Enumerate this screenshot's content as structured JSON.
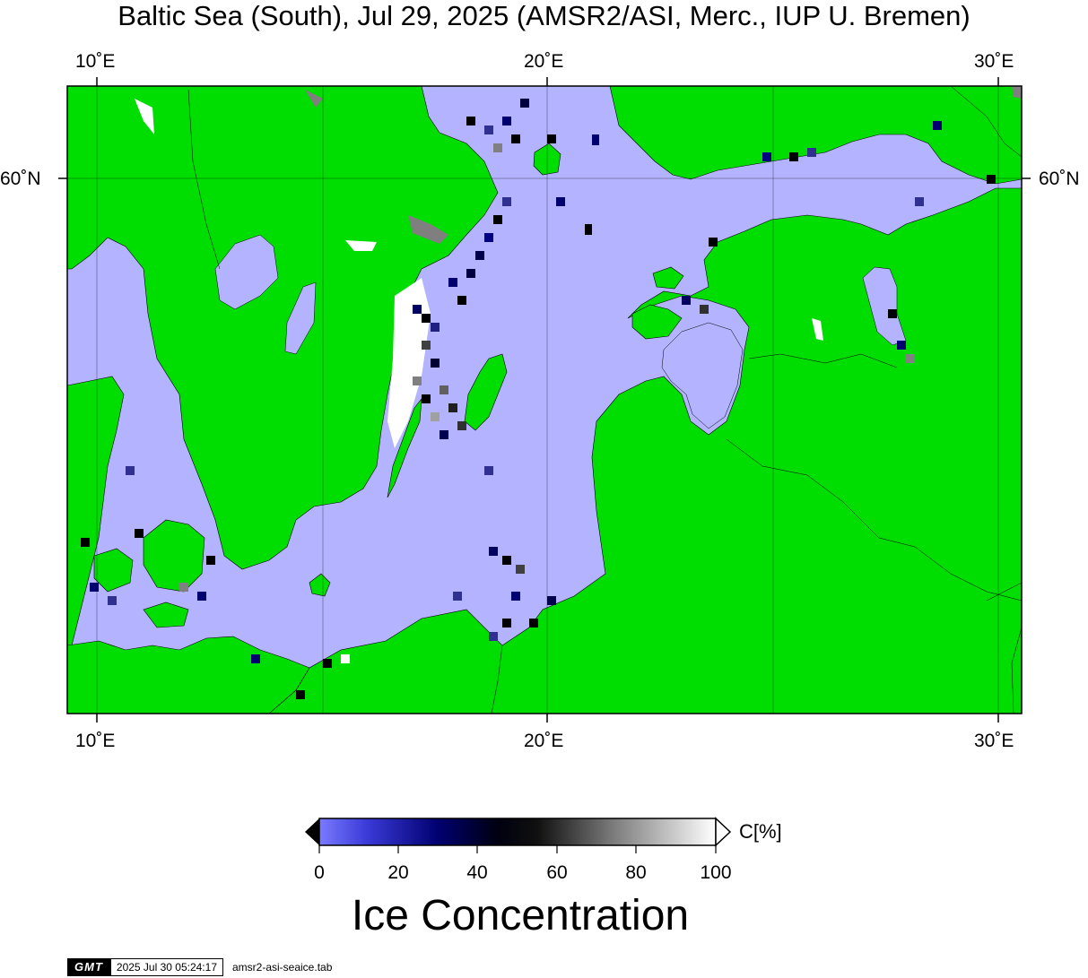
{
  "title": "Baltic Sea (South), Jul 29, 2025 (AMSR2/ASI, Merc., IUP U. Bremen)",
  "axes": {
    "top_lon_labels": [
      "10˚E",
      "20˚E",
      "30˚E"
    ],
    "bottom_lon_labels": [
      "10˚E",
      "20˚E",
      "30˚E"
    ],
    "left_lat_label": "60˚N",
    "right_lat_label": "60˚N"
  },
  "colors": {
    "land": "#00dd00",
    "water": "#b3b3ff",
    "coast_gray": "#7f7f7f",
    "frame": "#000000"
  },
  "colorbar": {
    "title": "Ice Concentration",
    "unit": "C[%]",
    "ticks": [
      "0",
      "20",
      "40",
      "60",
      "80",
      "100"
    ],
    "range": [
      0,
      100
    ]
  },
  "footer": {
    "logo": "GMT",
    "timestamp": "2025 Jul 30 05:24:17",
    "filename": "amsr2-asi-seaice.tab"
  }
}
